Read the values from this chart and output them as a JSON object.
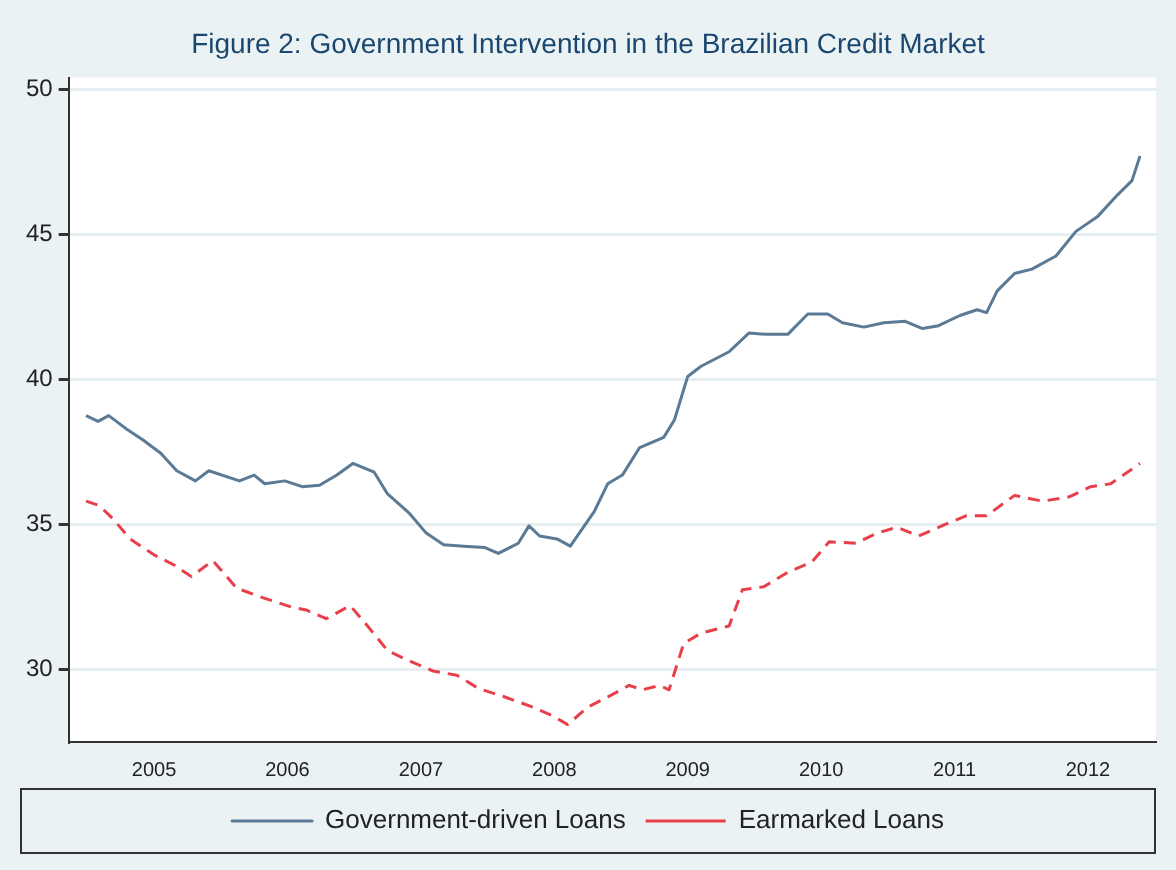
{
  "chart_data": {
    "type": "line",
    "title": "Figure 2: Government Intervention in the Brazilian Credit Market",
    "xlim": [
      2004.36,
      2012.51
    ],
    "xticks": [
      2005,
      2006,
      2007,
      2008,
      2009,
      2010,
      2011,
      2012
    ],
    "ylim": [
      27.5,
      50.4
    ],
    "yticks": [
      30,
      35,
      40,
      45,
      50
    ],
    "grid": "y",
    "legend": "bottom",
    "marker": "none",
    "series": [
      {
        "name": "Government-driven Loans",
        "color": "#5a7a95",
        "line_style": "solid",
        "x": [
          2004.49,
          2004.58,
          2004.66,
          2004.79,
          2004.92,
          2005.05,
          2005.17,
          2005.31,
          2005.41,
          2005.64,
          2005.75,
          2005.83,
          2005.98,
          2006.11,
          2006.24,
          2006.37,
          2006.49,
          2006.65,
          2006.75,
          2006.91,
          2007.04,
          2007.17,
          2007.32,
          2007.48,
          2007.58,
          2007.73,
          2007.81,
          2007.89,
          2008.02,
          2008.12,
          2008.3,
          2008.4,
          2008.51,
          2008.64,
          2008.82,
          2008.9,
          2009.0,
          2009.1,
          2009.31,
          2009.46,
          2009.59,
          2009.75,
          2009.9,
          2010.05,
          2010.16,
          2010.32,
          2010.47,
          2010.63,
          2010.76,
          2010.88,
          2011.04,
          2011.17,
          2011.24,
          2011.32,
          2011.45,
          2011.58,
          2011.76,
          2011.91,
          2012.07,
          2012.22,
          2012.33,
          2012.39
        ],
        "values": [
          38.75,
          38.55,
          38.75,
          38.3,
          37.9,
          37.45,
          36.85,
          36.5,
          36.85,
          36.5,
          36.7,
          36.4,
          36.5,
          36.3,
          36.35,
          36.7,
          37.1,
          36.8,
          36.05,
          35.4,
          34.7,
          34.3,
          34.25,
          34.2,
          34.0,
          34.35,
          34.95,
          34.6,
          34.5,
          34.25,
          35.45,
          36.4,
          36.7,
          37.65,
          38.0,
          38.6,
          40.1,
          40.45,
          40.95,
          41.6,
          41.55,
          41.55,
          42.25,
          42.25,
          41.95,
          41.8,
          41.95,
          42.0,
          41.75,
          41.85,
          42.2,
          42.4,
          42.3,
          43.05,
          43.65,
          43.8,
          44.25,
          45.1,
          45.6,
          46.35,
          46.85,
          47.7
        ]
      },
      {
        "name": "Earmarked Loans",
        "color": "#e8404a",
        "line_style": "dashed",
        "x": [
          2004.49,
          2004.59,
          2004.69,
          2004.82,
          2005.0,
          2005.15,
          2005.28,
          2005.44,
          2005.62,
          2005.83,
          2006.03,
          2006.14,
          2006.29,
          2006.47,
          2006.6,
          2006.75,
          2006.91,
          2007.09,
          2007.27,
          2007.43,
          2007.63,
          2007.84,
          2007.99,
          2008.1,
          2008.25,
          2008.4,
          2008.56,
          2008.66,
          2008.79,
          2008.86,
          2008.97,
          2009.1,
          2009.31,
          2009.41,
          2009.57,
          2009.75,
          2009.93,
          2010.06,
          2010.26,
          2010.42,
          2010.57,
          2010.73,
          2010.93,
          2011.09,
          2011.24,
          2011.45,
          2011.66,
          2011.86,
          2012.02,
          2012.17,
          2012.39
        ],
        "values": [
          35.8,
          35.65,
          35.2,
          34.5,
          33.95,
          33.6,
          33.2,
          33.75,
          32.8,
          32.45,
          32.15,
          32.05,
          31.75,
          32.2,
          31.5,
          30.65,
          30.3,
          29.95,
          29.8,
          29.35,
          29.05,
          28.7,
          28.4,
          28.1,
          28.7,
          29.05,
          29.45,
          29.3,
          29.45,
          29.3,
          30.9,
          31.25,
          31.5,
          32.75,
          32.85,
          33.35,
          33.7,
          34.4,
          34.35,
          34.7,
          34.9,
          34.6,
          35.0,
          35.3,
          35.3,
          36.0,
          35.8,
          35.95,
          36.3,
          36.4,
          37.1
        ]
      }
    ]
  }
}
